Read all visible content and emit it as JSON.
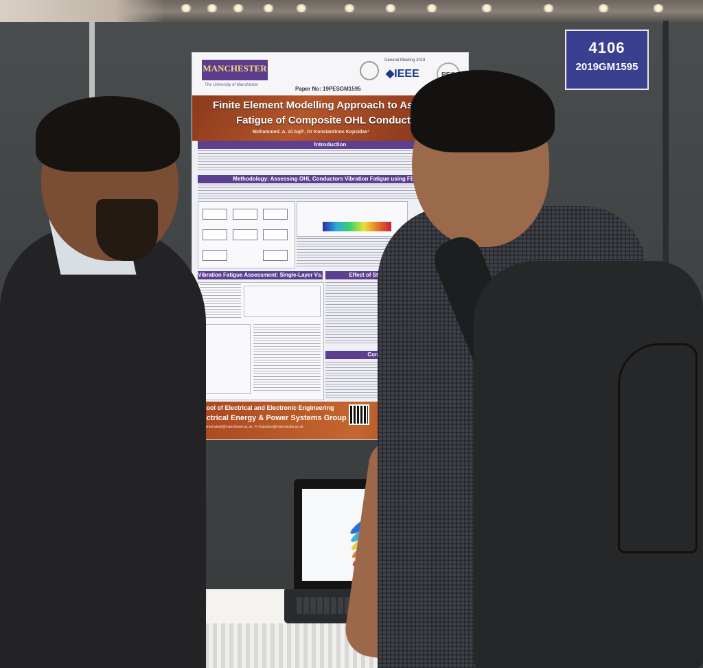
{
  "booth": {
    "number": "4106",
    "code": "2019GM1595"
  },
  "poster": {
    "university": "MANCHESTER",
    "university_sub": "The University of Manchester",
    "meeting": "General Meeting 2019",
    "ieee": "◆IEEE",
    "pes": "PES",
    "paper_no": "Paper No: 19PESGM1595",
    "title_line1": "Finite Element Modelling Approach to As",
    "title_line2": "Fatigue of Composite OHL Conductor",
    "authors": "Mohammed. A. Al Aqil¹, Dr Konstantinos Kopsidas¹",
    "sections": {
      "introduction": "Introduction",
      "methodology": "Methodology: Assessing OHL Conductors Vibration Fatigue using FEM Co",
      "vibration": "Vibration Fatigue Assessment: Single-Layer Vs. Multi-Layer",
      "stranding": "Effect of Stranding Pattern (ACSR/",
      "conclusion": "Conclusion and Sug"
    },
    "footer_school": "School of Electrical and Electronic Engineering",
    "footer_group": "Electrical Energy & Power Systems Group",
    "footer_email": "mohammed.alaqil@manchester.ac.uk, ¹K.Kopsidas@manchester.ac.uk"
  },
  "colors": {
    "poster_purple": "#5c3f8f",
    "poster_orange": "#b5552a",
    "booth_tag": "#3b3f8f"
  }
}
